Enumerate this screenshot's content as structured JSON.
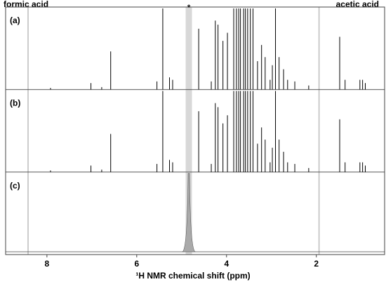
{
  "chart_data": {
    "type": "line",
    "x_label": "¹H NMR chemical shift (ppm)",
    "xlim": [
      8.92,
      0.48
    ],
    "xticks": [
      8,
      6,
      4,
      2
    ],
    "reference_lines": [
      {
        "x": 8.42,
        "label": "formic acid"
      },
      {
        "x": 1.94,
        "label": "acetic acid"
      }
    ],
    "solvent_band": {
      "x": 4.84,
      "label": "*"
    },
    "series": [
      {
        "name": "(a)",
        "color": "#000000",
        "x": [
          7.92,
          7.02,
          6.78,
          6.58,
          5.55,
          5.42,
          5.27,
          5.2,
          4.62,
          4.34,
          4.25,
          4.19,
          4.08,
          3.98,
          3.84,
          3.78,
          3.73,
          3.69,
          3.62,
          3.58,
          3.53,
          3.47,
          3.41,
          3.31,
          3.22,
          3.14,
          3.03,
          2.98,
          2.91,
          2.83,
          2.73,
          2.64,
          2.48,
          2.17,
          1.48,
          1.36,
          1.03,
          0.97,
          0.91
        ],
        "values": [
          0.02,
          0.08,
          0.03,
          0.47,
          0.1,
          1.0,
          0.15,
          0.12,
          0.75,
          0.1,
          0.85,
          0.8,
          0.6,
          0.7,
          1.0,
          1.0,
          1.0,
          1.0,
          1.0,
          1.0,
          1.0,
          1.0,
          1.0,
          0.35,
          0.55,
          0.4,
          0.12,
          0.3,
          1.0,
          0.4,
          0.25,
          0.12,
          0.1,
          0.05,
          0.65,
          0.12,
          0.12,
          0.12,
          0.08
        ]
      },
      {
        "name": "(b)",
        "color": "#000000",
        "x": [
          7.92,
          7.02,
          6.78,
          6.58,
          5.55,
          5.42,
          5.27,
          5.2,
          4.62,
          4.34,
          4.25,
          4.19,
          4.08,
          3.98,
          3.84,
          3.78,
          3.73,
          3.69,
          3.62,
          3.58,
          3.53,
          3.47,
          3.41,
          3.31,
          3.22,
          3.14,
          3.03,
          2.98,
          2.91,
          2.83,
          2.73,
          2.64,
          2.48,
          2.17,
          1.48,
          1.36,
          1.03,
          0.97,
          0.91
        ],
        "values": [
          0.02,
          0.08,
          0.03,
          0.47,
          0.1,
          1.0,
          0.15,
          0.12,
          0.75,
          0.1,
          0.85,
          0.8,
          0.6,
          0.7,
          1.0,
          1.0,
          1.0,
          1.0,
          1.0,
          1.0,
          1.0,
          1.0,
          1.0,
          0.35,
          0.55,
          0.4,
          0.12,
          0.3,
          1.0,
          0.4,
          0.25,
          0.12,
          0.1,
          0.05,
          0.65,
          0.12,
          0.12,
          0.12,
          0.08
        ]
      },
      {
        "name": "(c)",
        "color": "#aaaaaa",
        "x": [
          4.84
        ],
        "values": [
          1.0
        ]
      }
    ]
  }
}
